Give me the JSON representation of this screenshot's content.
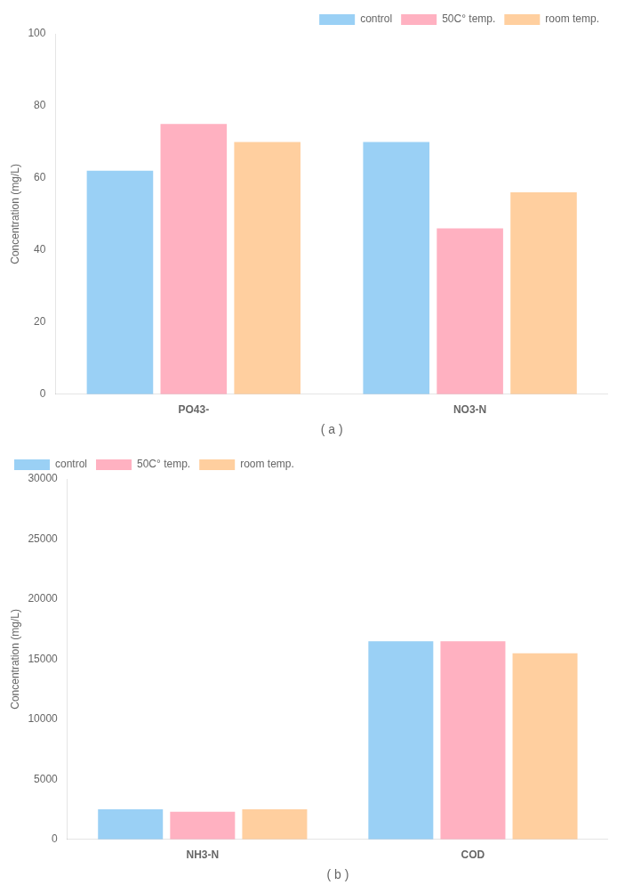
{
  "chart_data": [
    {
      "type": "bar",
      "categories": [
        "PO43-",
        "NO3-N"
      ],
      "series": [
        {
          "name": "control",
          "values": [
            62,
            70
          ]
        },
        {
          "name": "50C° temp.",
          "values": [
            75,
            46
          ]
        },
        {
          "name": "room temp.",
          "values": [
            70,
            56
          ]
        }
      ],
      "ylabel": "Concentration (mg/L)",
      "xlabel": "( a )",
      "ylim": [
        0,
        100
      ],
      "yticks": [
        0,
        20,
        40,
        60,
        80,
        100
      ],
      "grid": false,
      "legend": "upper right"
    },
    {
      "type": "bar",
      "categories": [
        "NH3-N",
        "COD"
      ],
      "series": [
        {
          "name": "control",
          "values": [
            2500,
            16500
          ]
        },
        {
          "name": "50C° temp.",
          "values": [
            2300,
            16500
          ]
        },
        {
          "name": "room temp.",
          "values": [
            2500,
            15500
          ]
        }
      ],
      "ylabel": "Concentration (mg/L)",
      "xlabel": "( b )",
      "ylim": [
        0,
        30000
      ],
      "yticks": [
        0,
        5000,
        10000,
        15000,
        20000,
        25000,
        30000
      ],
      "grid": false,
      "legend": "upper left"
    }
  ]
}
